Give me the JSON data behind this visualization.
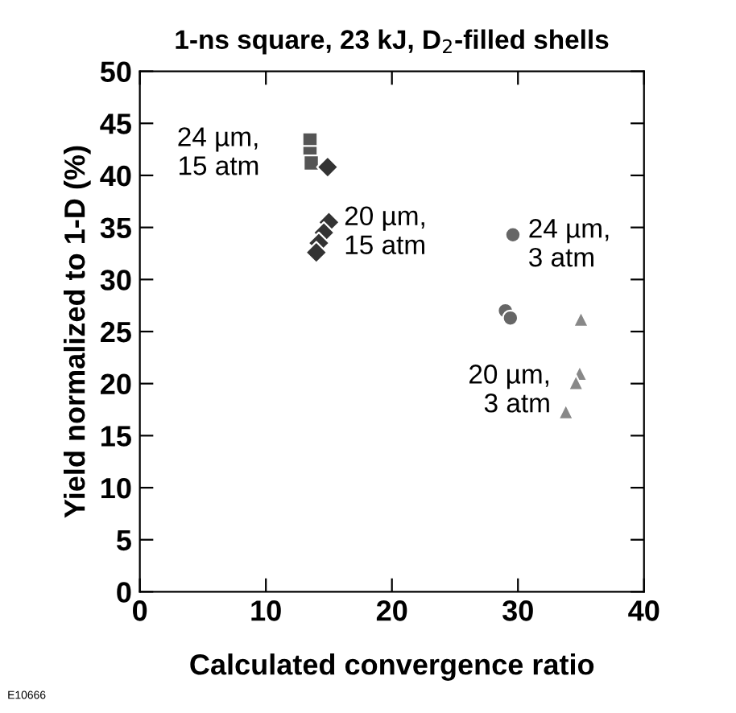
{
  "chart_data": {
    "type": "scatter",
    "title": "1-ns square, 23 kJ, D$_{2}$-filled shells",
    "xlabel": "Calculated convergence ratio",
    "ylabel": "Yield normalized to 1-D (%)",
    "series": [
      {
        "marker": "square",
        "color": "#555555",
        "x": [
          13.5,
          13.5,
          13.6
        ],
        "values": [
          43.4,
          42.1,
          41.2
        ]
      },
      {
        "marker": "diamond",
        "color": "#333333",
        "x": [
          14.9,
          15.0,
          14.6,
          14.2,
          14.0
        ],
        "values": [
          40.8,
          35.5,
          34.5,
          33.5,
          32.6
        ]
      },
      {
        "marker": "circle",
        "color": "#666666",
        "x": [
          29.6,
          29.0,
          29.4
        ],
        "values": [
          34.3,
          27.0,
          26.3
        ]
      },
      {
        "marker": "triangle",
        "color": "#888888",
        "x": [
          35.0,
          34.9,
          34.6,
          33.8
        ],
        "values": [
          26.2,
          21.0,
          20.1,
          17.3
        ]
      }
    ],
    "annotations": [
      {
        "text": "24 µm,\n15 atm",
        "x": 13.5,
        "y": 42.1
      },
      {
        "text": "20 µm,\n15 atm",
        "x": 15.0,
        "y": 34.5
      },
      {
        "text": "24 µm,\n3 atm",
        "x": 29.6,
        "y": 34.3
      },
      {
        "text": "20 µm,\n3 atm",
        "x": 33.8,
        "y": 17.3
      },
      "E10666"
    ],
    "xlim": [
      0,
      40
    ],
    "xticks": [
      0,
      10,
      20,
      30,
      40
    ],
    "ylim": [
      0,
      50
    ],
    "yticks": [
      0,
      5,
      10,
      15,
      20,
      25,
      30,
      35,
      40,
      45,
      50
    ],
    "grid": false,
    "legend": false
  }
}
